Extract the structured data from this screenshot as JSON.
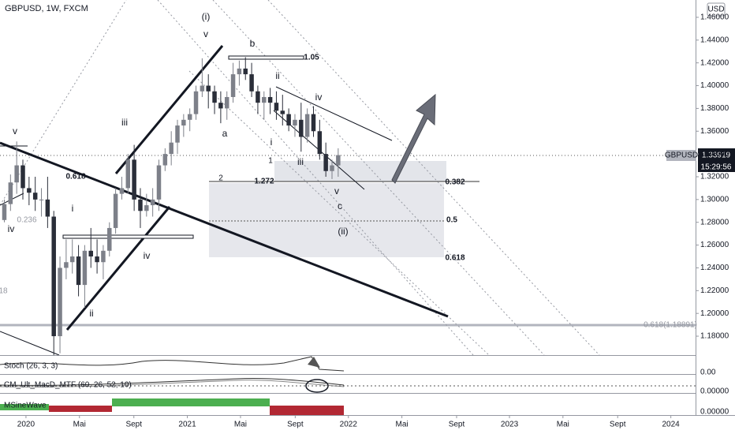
{
  "chart_data": {
    "type": "candlestick",
    "title": "GBPUSD, 1W, FXCM",
    "currency": "USD",
    "symbol_label": "GBPUSD",
    "last_price": 1.33919,
    "countdown": "15:29:56",
    "up_color": "#7d8089",
    "down_color": "#2a2e39",
    "x": [
      -7,
      -5,
      -3,
      -1,
      1,
      3,
      5,
      7,
      9,
      11,
      13,
      15,
      17,
      19,
      21,
      23,
      25,
      27,
      29,
      31,
      33,
      35,
      37,
      39,
      41,
      43,
      45,
      47,
      49,
      51,
      53,
      55,
      57,
      59,
      61,
      63,
      65,
      67,
      69,
      71,
      73,
      75,
      77,
      79,
      81,
      83,
      85,
      87,
      89,
      91,
      93,
      95,
      97,
      99,
      101
    ],
    "open": [
      1.282,
      1.296,
      1.315,
      1.33,
      1.31,
      1.306,
      1.3,
      1.3,
      1.285,
      1.18,
      1.24,
      1.245,
      1.25,
      1.225,
      1.255,
      1.25,
      1.245,
      1.255,
      1.275,
      1.305,
      1.31,
      1.335,
      1.3,
      1.29,
      1.295,
      1.3,
      1.33,
      1.34,
      1.35,
      1.365,
      1.37,
      1.375,
      1.395,
      1.4,
      1.395,
      1.385,
      1.38,
      1.39,
      1.41,
      1.415,
      1.41,
      1.395,
      1.385,
      1.39,
      1.385,
      1.378,
      1.375,
      1.365,
      1.37,
      1.355,
      1.375,
      1.36,
      1.34,
      1.325,
      1.33
    ],
    "high": [
      1.3,
      1.322,
      1.351,
      1.335,
      1.32,
      1.32,
      1.31,
      1.32,
      1.29,
      1.25,
      1.265,
      1.265,
      1.26,
      1.26,
      1.275,
      1.265,
      1.26,
      1.28,
      1.31,
      1.32,
      1.34,
      1.348,
      1.31,
      1.305,
      1.31,
      1.335,
      1.345,
      1.36,
      1.37,
      1.375,
      1.38,
      1.4,
      1.424,
      1.41,
      1.4,
      1.395,
      1.395,
      1.42,
      1.422,
      1.425,
      1.42,
      1.4,
      1.395,
      1.398,
      1.395,
      1.392,
      1.38,
      1.375,
      1.385,
      1.38,
      1.382,
      1.37,
      1.35,
      1.335,
      1.345
    ],
    "low": [
      1.28,
      1.29,
      1.305,
      1.3,
      1.295,
      1.29,
      1.285,
      1.275,
      1.15,
      1.165,
      1.23,
      1.235,
      1.215,
      1.205,
      1.24,
      1.235,
      1.23,
      1.25,
      1.27,
      1.3,
      1.305,
      1.29,
      1.275,
      1.285,
      1.285,
      1.29,
      1.325,
      1.33,
      1.34,
      1.355,
      1.36,
      1.37,
      1.39,
      1.38,
      1.375,
      1.367,
      1.37,
      1.385,
      1.4,
      1.405,
      1.39,
      1.375,
      1.37,
      1.375,
      1.37,
      1.365,
      1.36,
      1.355,
      1.342,
      1.35,
      1.355,
      1.335,
      1.32,
      1.318,
      1.32
    ],
    "close": [
      1.296,
      1.315,
      1.33,
      1.31,
      1.306,
      1.3,
      1.3,
      1.285,
      1.18,
      1.24,
      1.245,
      1.25,
      1.225,
      1.255,
      1.25,
      1.245,
      1.255,
      1.275,
      1.305,
      1.31,
      1.335,
      1.3,
      1.29,
      1.295,
      1.3,
      1.33,
      1.34,
      1.35,
      1.365,
      1.37,
      1.375,
      1.395,
      1.4,
      1.395,
      1.385,
      1.38,
      1.39,
      1.41,
      1.415,
      1.41,
      1.395,
      1.385,
      1.39,
      1.385,
      1.378,
      1.375,
      1.365,
      1.37,
      1.355,
      1.375,
      1.36,
      1.34,
      1.325,
      1.33,
      1.339
    ],
    "xlim": [
      -8.4,
      216.6
    ],
    "xticks": [
      {
        "value": 0,
        "label": "2020"
      },
      {
        "value": 17.3,
        "label": "Mai"
      },
      {
        "value": 34.9,
        "label": "Sept"
      },
      {
        "value": 52.2,
        "label": "2021"
      },
      {
        "value": 69.4,
        "label": "Mai"
      },
      {
        "value": 87.1,
        "label": "Sept"
      },
      {
        "value": 104.3,
        "label": "2022"
      },
      {
        "value": 121.6,
        "label": "Mai"
      },
      {
        "value": 139.3,
        "label": "Sept"
      },
      {
        "value": 156.4,
        "label": "2023"
      },
      {
        "value": 173.7,
        "label": "Mai"
      },
      {
        "value": 191.4,
        "label": "Sept"
      },
      {
        "value": 208.6,
        "label": "2024"
      }
    ],
    "ylim": [
      1.1634,
      1.4752
    ],
    "yticks": [
      {
        "value": 1.18,
        "label": "1.18000"
      },
      {
        "value": 1.2,
        "label": "1.20000"
      },
      {
        "value": 1.22,
        "label": "1.22000"
      },
      {
        "value": 1.24,
        "label": "1.24000"
      },
      {
        "value": 1.26,
        "label": "1.26000"
      },
      {
        "value": 1.28,
        "label": "1.28000"
      },
      {
        "value": 1.3,
        "label": "1.30000"
      },
      {
        "value": 1.32,
        "label": "1.32000"
      },
      {
        "value": 1.34,
        "label": "1.34000"
      },
      {
        "value": 1.36,
        "label": "1.36000"
      },
      {
        "value": 1.38,
        "label": "1.38000"
      },
      {
        "value": 1.4,
        "label": "1.40000"
      },
      {
        "value": 1.42,
        "label": "1.42000"
      },
      {
        "value": 1.44,
        "label": "1.44000"
      },
      {
        "value": 1.46,
        "label": "1.46000"
      }
    ],
    "annotations": [
      "(i)",
      "v",
      "b",
      "1.05",
      "ii",
      "iv",
      "iii",
      "a",
      "i",
      "1",
      "iii",
      "2",
      "1.272",
      "0.382",
      "v",
      "c",
      "0.5",
      "(ii)",
      "0.618",
      "i",
      "iv",
      "ii",
      "iv",
      "v",
      "0.618",
      "0.236",
      "18",
      "0.618(1.18891)"
    ],
    "indicators": [
      {
        "name": "Stoch (26, 3, 3)",
        "value_label": "0.00"
      },
      {
        "name": "CM_Ult_MacD_MTF (60, 26, 52, 10)",
        "value_label": "0.00000"
      },
      {
        "name": "MSineWave",
        "value_label": "0.00000"
      }
    ]
  }
}
